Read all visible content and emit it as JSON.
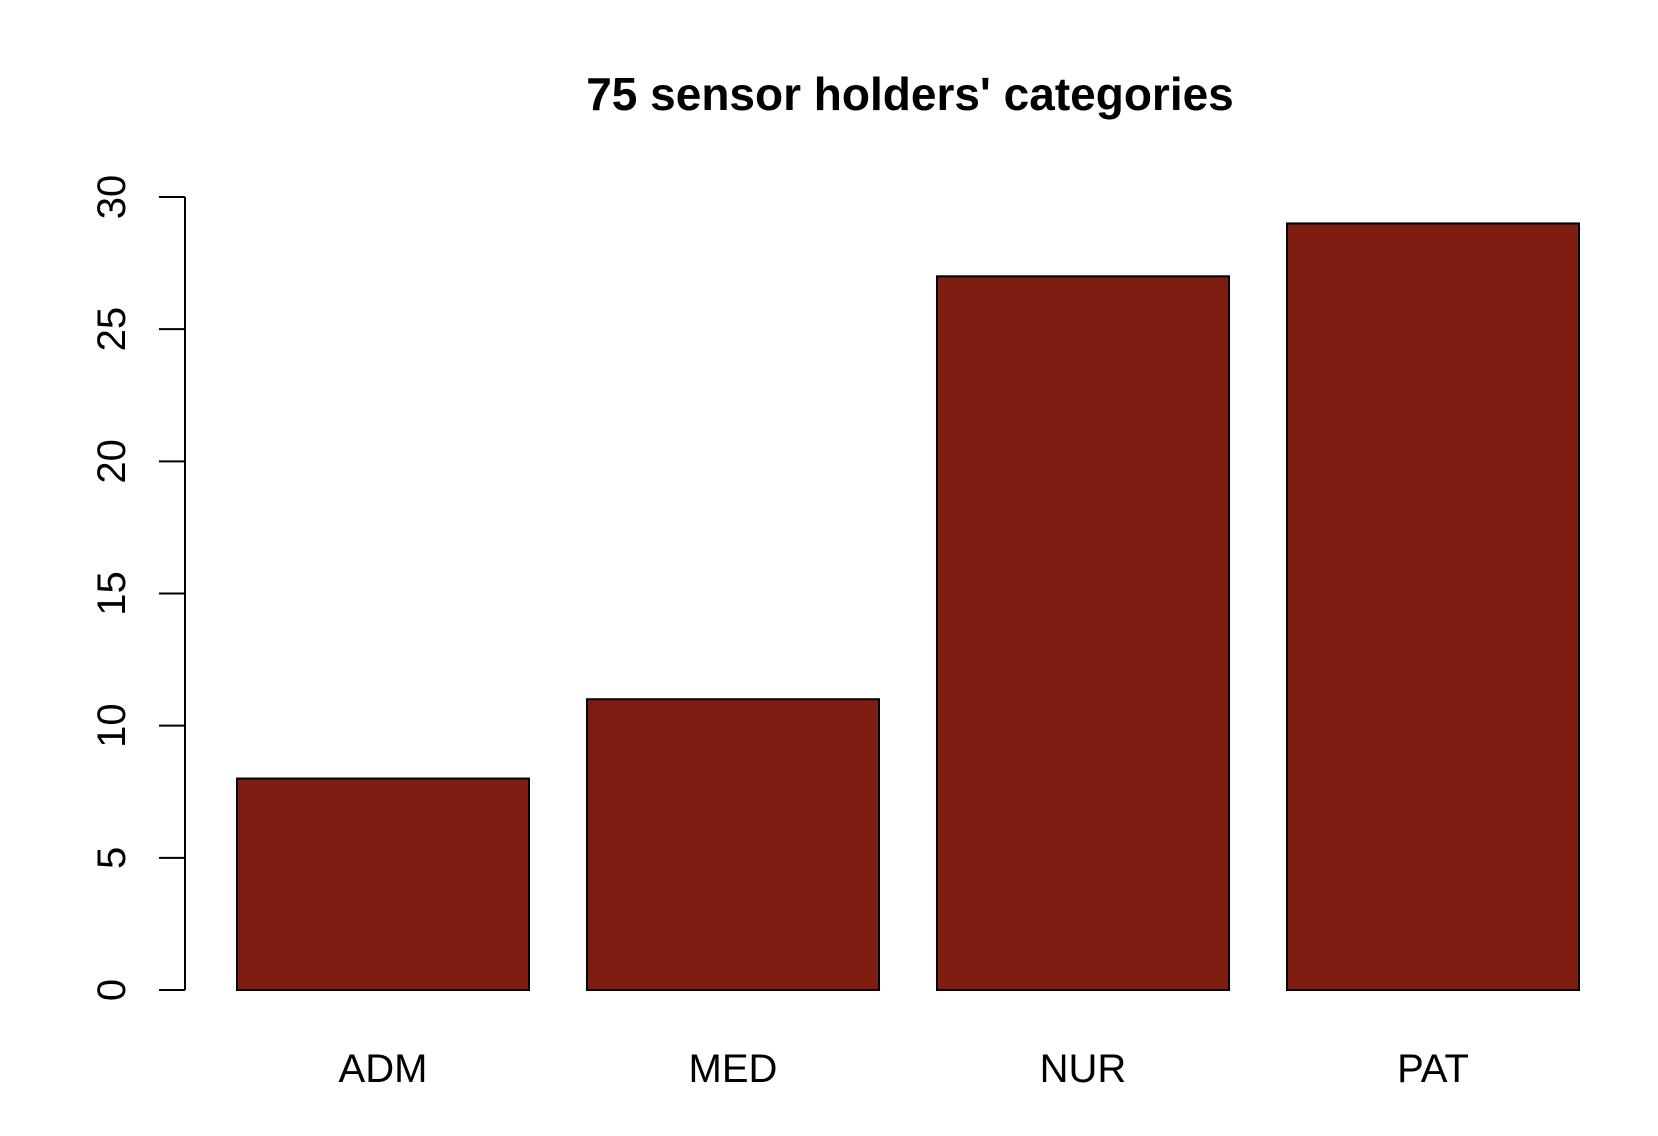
{
  "chart_data": {
    "type": "bar",
    "title": "75 sensor holders' categories",
    "xlabel": "",
    "ylabel": "",
    "categories": [
      "ADM",
      "MED",
      "NUR",
      "PAT"
    ],
    "values": [
      8,
      11,
      27,
      29
    ],
    "ylim": [
      0,
      30
    ],
    "yticks": [
      "0",
      "5",
      "10",
      "15",
      "20",
      "25",
      "30"
    ],
    "grid": false,
    "legend": "none",
    "colors": {
      "bar_fill": "#7f1d10",
      "bar_stroke": "#000000",
      "axis": "#000000",
      "background": "#ffffff"
    }
  }
}
